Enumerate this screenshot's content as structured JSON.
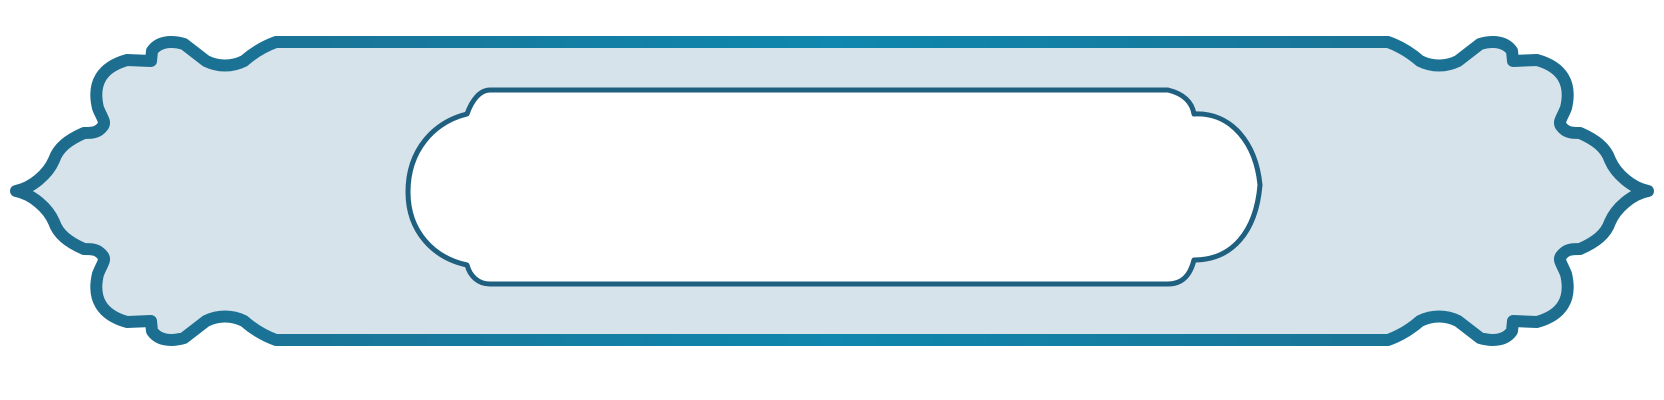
{
  "graphic": {
    "kind": "ornamental-banner-frame",
    "outer_frame": {
      "fill_color": "#d7e3ea",
      "border_color_dark": "#1f5f7f",
      "border_color_light": "#0f87ae"
    },
    "inner_panel": {
      "fill_color": "#ffffff",
      "border_color": "#1f5f7f"
    },
    "text": ""
  }
}
